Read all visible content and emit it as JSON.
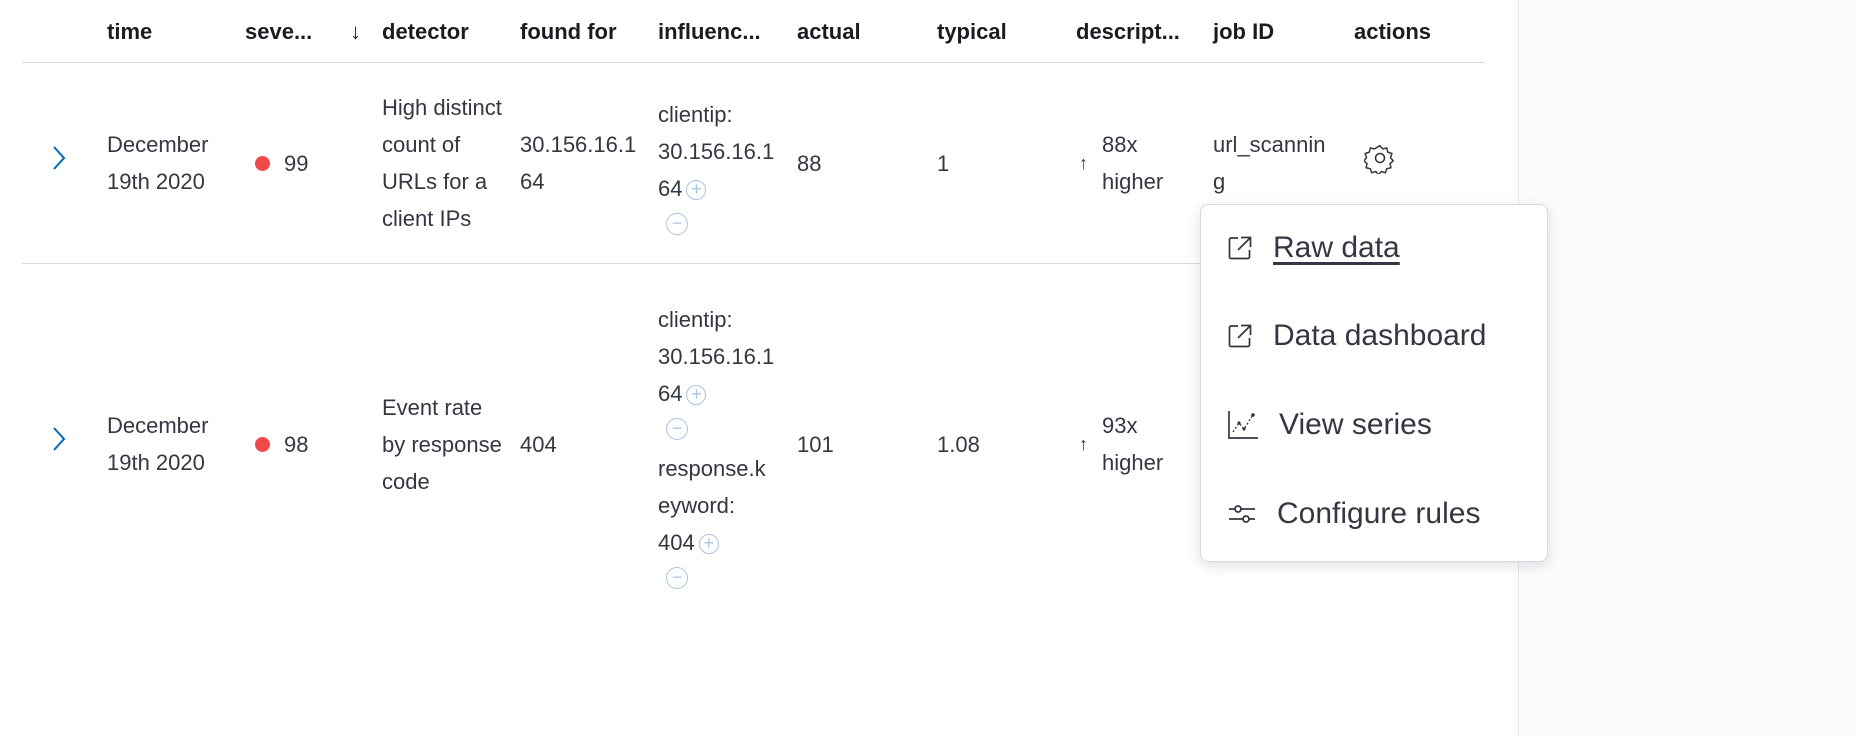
{
  "table": {
    "columns": [
      "time",
      "seve...",
      "detector",
      "found for",
      "influenc...",
      "actual",
      "typical",
      "descript...",
      "job ID",
      "actions"
    ],
    "sort": {
      "column": "seve...",
      "direction": "descending",
      "icon": "arrow-down-icon"
    },
    "rows": [
      {
        "time": "December 19th 2020",
        "severity": "99",
        "severity_color": "#f24a4a",
        "detector": "High distinct count of URLs for a client IPs",
        "found_for": "30.156.16.164",
        "influencers": [
          {
            "label": "clientip:",
            "value": "30.156.16.164"
          }
        ],
        "actual": "88",
        "typical": "1",
        "description": "88x higher",
        "description_icon": "arrow-up-icon",
        "job_id": "url_scanning"
      },
      {
        "time": "December 19th 2020",
        "severity": "98",
        "severity_color": "#f24a4a",
        "detector": "Event rate by response code",
        "found_for": "404",
        "influencers": [
          {
            "label": "clientip:",
            "value": "30.156.16.164"
          },
          {
            "label": "response.keyword:",
            "value": "404"
          }
        ],
        "actual": "101",
        "typical": "1.08",
        "description": "93x higher",
        "description_icon": "arrow-up-icon"
      }
    ]
  },
  "actions_menu": {
    "items": [
      {
        "label": "Raw data",
        "icon": "external-link-icon"
      },
      {
        "label": "Data dashboard",
        "icon": "external-link-icon"
      },
      {
        "label": "View series",
        "icon": "chart-line-icon"
      },
      {
        "label": "Configure rules",
        "icon": "sliders-icon"
      }
    ]
  },
  "colors": {
    "accent": "#006bb8",
    "critical": "#f24a4a",
    "text": "#343741"
  }
}
